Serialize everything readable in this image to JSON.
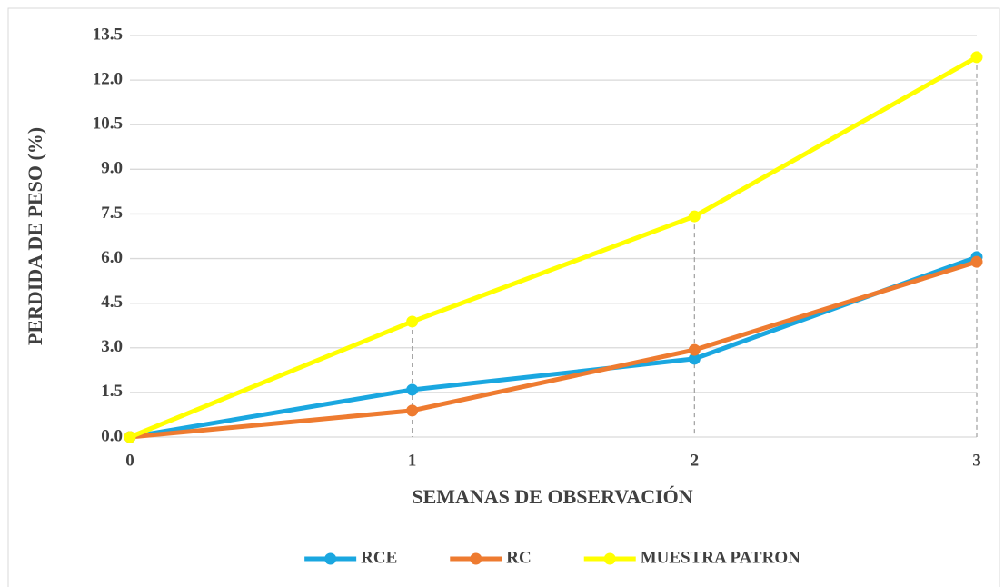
{
  "chart_data": {
    "type": "line",
    "x_label": "SEMANAS DE OBSERVACIÓN",
    "y_label": "PERDIDA DE PESO (%)",
    "x": [
      0,
      1,
      2,
      3
    ],
    "xlim": [
      0,
      3
    ],
    "xticks": [
      0,
      1,
      2,
      3
    ],
    "ylim": [
      0,
      13.5
    ],
    "yticks": [
      {
        "value": 0,
        "label": "0.0"
      },
      {
        "value": 1.5,
        "label": "1.5"
      },
      {
        "value": 3,
        "label": "3.0"
      },
      {
        "value": 4.5,
        "label": "4.5"
      },
      {
        "value": 6,
        "label": "6.0"
      },
      {
        "value": 7.5,
        "label": "7.5"
      },
      {
        "value": 9,
        "label": "9.0"
      },
      {
        "value": 10.5,
        "label": "10.5"
      },
      {
        "value": 12,
        "label": "12.0"
      },
      {
        "value": 13.5,
        "label": "13.5"
      }
    ],
    "grid": true,
    "legend": "bottom",
    "series": [
      {
        "name": "RCE",
        "color": "#1aa7e0",
        "values": [
          0,
          1.59,
          2.63,
          6.05
        ]
      },
      {
        "name": "RC",
        "color": "#ee7b30",
        "values": [
          0,
          0.89,
          2.93,
          5.89
        ]
      },
      {
        "name": "MUESTRA PATRON",
        "color": "#ffff00",
        "values": [
          0,
          3.88,
          7.42,
          12.77
        ]
      }
    ]
  }
}
